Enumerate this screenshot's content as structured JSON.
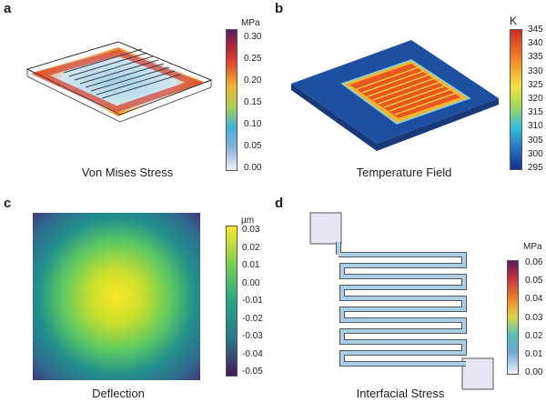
{
  "panels": [
    {
      "letter": "a",
      "caption": "Von Mises Stress",
      "unit": "MPa",
      "ticks": [
        "0.30",
        "0.25",
        "0.20",
        "0.15",
        "0.10",
        "0.05",
        "0.00"
      ]
    },
    {
      "letter": "b",
      "caption": "Temperature Field",
      "unit": "K",
      "ticks": [
        "345",
        "340",
        "335",
        "330",
        "325",
        "320",
        "315",
        "310",
        "305",
        "300",
        "295"
      ]
    },
    {
      "letter": "c",
      "caption": "Deflection",
      "unit": "µm",
      "ticks": [
        "0.03",
        "0.02",
        "0.01",
        "0.00",
        "-0.01",
        "-0.02",
        "-0.03",
        "-0.04",
        "-0.05"
      ]
    },
    {
      "letter": "d",
      "caption": "Interfacial Stress",
      "unit": "MPa",
      "ticks": [
        "0.06",
        "0.05",
        "0.04",
        "0.03",
        "0.02",
        "0.01",
        "0.00"
      ]
    }
  ],
  "colors": {
    "stress_top": "#5a1f5c",
    "temp_top": "#c0282a",
    "viridis_top": "#fde725",
    "viridis_bottom": "#46185a"
  }
}
